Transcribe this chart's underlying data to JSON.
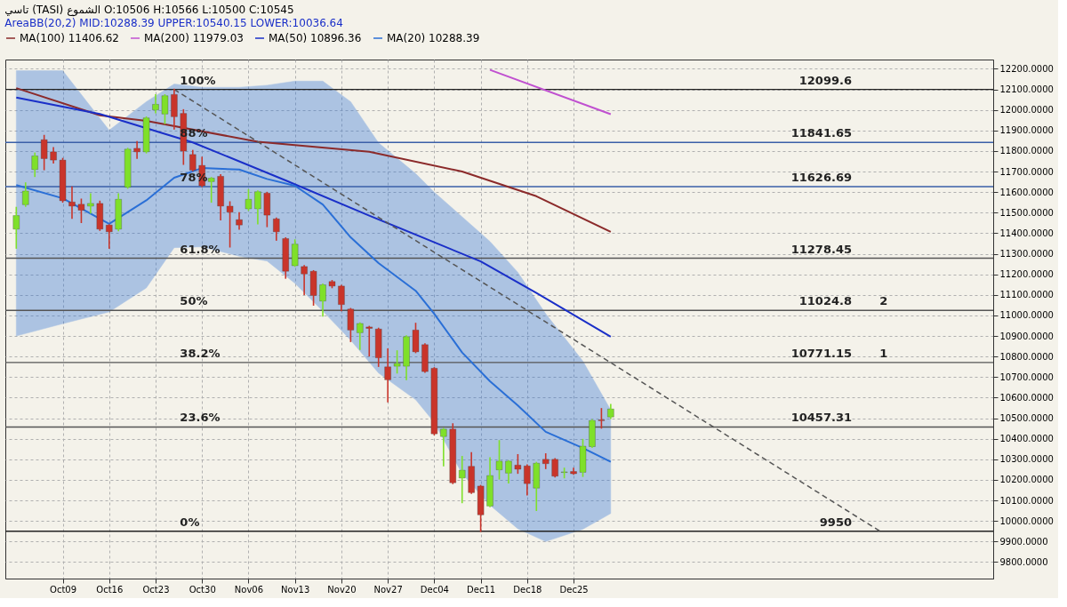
{
  "chart_data": {
    "type": "candlestick",
    "title": "تاسي (TASI) الشموع O:10506 H:10566 L:10500 C:10545",
    "subtitle": "AreaBB(20,2) MID:10288.39 UPPER:10540.15 LOWER:10036.64",
    "categories": [
      null,
      null,
      null,
      null,
      null,
      "Oct09",
      null,
      null,
      null,
      null,
      "Oct16",
      null,
      null,
      null,
      null,
      "Oct23",
      null,
      null,
      null,
      null,
      "Oct30",
      null,
      null,
      null,
      null,
      "Nov06",
      null,
      null,
      null,
      null,
      "Nov13",
      null,
      null,
      null,
      null,
      "Nov20",
      null,
      null,
      null,
      null,
      "Nov27",
      null,
      null,
      null,
      null,
      "Dec04",
      null,
      null,
      null,
      null,
      "Dec11",
      null,
      null,
      null,
      null,
      "Dec18",
      null,
      null,
      null,
      null,
      "Dec25",
      null,
      null,
      null,
      null,
      null,
      null,
      null,
      null,
      null,
      null,
      null,
      null,
      null,
      null,
      null,
      null,
      null,
      null,
      null,
      null,
      null,
      null,
      null,
      null,
      null,
      null,
      null,
      null,
      null,
      null,
      null,
      null,
      null,
      null,
      null,
      null,
      null,
      null,
      null,
      null,
      null,
      null,
      null,
      null
    ],
    "ohlc": [
      [
        11420,
        11525,
        11328,
        11486
      ],
      [
        11539,
        11644,
        11532,
        11605
      ],
      [
        11710,
        11789,
        11677,
        11776
      ],
      [
        11855,
        11875,
        11710,
        11763
      ],
      [
        11796,
        11816,
        11743,
        11756
      ],
      [
        11756,
        11763,
        11552,
        11558
      ],
      [
        11552,
        11624,
        11473,
        11532
      ],
      [
        11541,
        11565,
        11453,
        11512
      ],
      [
        11532,
        11591,
        11499,
        11545
      ],
      [
        11545,
        11555,
        11415,
        11420
      ],
      [
        11440,
        11440,
        11328,
        11407
      ],
      [
        11420,
        11591,
        11413,
        11565
      ],
      [
        11624,
        11812,
        11620,
        11809
      ],
      [
        11813,
        11845,
        11765,
        11796
      ],
      [
        11796,
        11965,
        11792,
        11961
      ],
      [
        12000,
        12073,
        11987,
        12027
      ],
      [
        11980,
        12073,
        11934,
        12069
      ],
      [
        12075,
        12099.6,
        11908,
        11967
      ],
      [
        11983,
        12000,
        11736,
        11800
      ],
      [
        11783,
        11802,
        11705,
        11707
      ],
      [
        11730,
        11769,
        11628,
        11631
      ],
      [
        11651,
        11670,
        11552,
        11668
      ],
      [
        11677,
        11684,
        11466,
        11532
      ],
      [
        11532,
        11552,
        11334,
        11502
      ],
      [
        11466,
        11499,
        11420,
        11440
      ],
      [
        11519,
        11611,
        11512,
        11565
      ],
      [
        11519,
        11605,
        11446,
        11602
      ],
      [
        11595,
        11598,
        11433,
        11488
      ],
      [
        11470,
        11473,
        11367,
        11407
      ],
      [
        11374,
        11377,
        11182,
        11215
      ],
      [
        11242,
        11367,
        11240,
        11347
      ],
      [
        11238,
        11242,
        11103,
        11202
      ],
      [
        11215,
        11217,
        11051,
        11097
      ],
      [
        11070,
        11152,
        10998,
        11149
      ],
      [
        11165,
        11169,
        11136,
        11143
      ],
      [
        11143,
        11146,
        11024,
        11053
      ],
      [
        11031,
        11033,
        10874,
        10929
      ],
      [
        10916,
        10963,
        10836,
        10961
      ],
      [
        10944,
        10946,
        10804,
        10937
      ],
      [
        10934,
        10937,
        10753,
        10794
      ],
      [
        10750,
        10836,
        10581,
        10687
      ],
      [
        10753,
        10827,
        10721,
        10766
      ],
      [
        10753,
        10900,
        10689,
        10897
      ],
      [
        10929,
        10961,
        10820,
        10823
      ],
      [
        10858,
        10861,
        10724,
        10727
      ],
      [
        10743,
        10745,
        10420,
        10424
      ],
      [
        10411,
        10449,
        10269,
        10447
      ],
      [
        10447,
        10472,
        10183,
        10186
      ],
      [
        10209,
        10313,
        10090,
        10247
      ],
      [
        10266,
        10332,
        10135,
        10138
      ],
      [
        10170,
        10172,
        9950,
        10030
      ],
      [
        10073,
        10307,
        10070,
        10221
      ],
      [
        10249,
        10390,
        10205,
        10291
      ],
      [
        10233,
        10293,
        10186,
        10291
      ],
      [
        10272,
        10322,
        10233,
        10252
      ],
      [
        10268,
        10272,
        10128,
        10182
      ],
      [
        10160,
        10284,
        10052,
        10281
      ],
      [
        10300,
        10326,
        10256,
        10279
      ],
      [
        10300,
        10302,
        10215,
        10218
      ],
      [
        10236,
        10256,
        10211,
        10239
      ],
      [
        10241,
        10256,
        10228,
        10230
      ],
      [
        10237,
        10396,
        10218,
        10364
      ],
      [
        10362,
        10492,
        10359,
        10489
      ],
      [
        10492,
        10546,
        10453,
        10488
      ],
      [
        10506,
        10566,
        10500,
        10545
      ],
      null,
      null,
      null,
      null,
      null,
      null,
      null,
      null,
      null,
      null,
      null,
      null,
      null,
      null,
      null,
      null,
      null,
      null,
      null,
      null,
      null,
      null,
      null,
      null,
      null,
      null,
      null,
      null,
      null,
      null,
      null,
      null,
      null,
      null,
      null,
      null,
      null,
      null,
      null,
      null
    ],
    "colors": [
      "#7fe02a",
      "#7fe02a",
      "#7fe02a",
      "#c9352b",
      "#c9352b",
      "#c9352b",
      "#c9352b",
      "#c9352b",
      "#7fe02a",
      "#c9352b",
      "#c9352b",
      "#7fe02a",
      "#7fe02a",
      "#c9352b",
      "#7fe02a",
      "#7fe02a",
      "#7fe02a",
      "#c9352b",
      "#c9352b",
      "#c9352b",
      "#c9352b",
      "#7fe02a",
      "#c9352b",
      "#c9352b",
      "#c9352b",
      "#7fe02a",
      "#7fe02a",
      "#c9352b",
      "#c9352b",
      "#c9352b",
      "#7fe02a",
      "#c9352b",
      "#c9352b",
      "#7fe02a",
      "#c9352b",
      "#c9352b",
      "#c9352b",
      "#7fe02a",
      "#c9352b",
      "#c9352b",
      "#c9352b",
      "#7fe02a",
      "#7fe02a",
      "#c9352b",
      "#c9352b",
      "#c9352b",
      "#7fe02a",
      "#c9352b",
      "#7fe02a",
      "#c9352b",
      "#c9352b",
      "#7fe02a",
      "#7fe02a",
      "#7fe02a",
      "#c9352b",
      "#c9352b",
      "#7fe02a",
      "#c9352b",
      "#c9352b",
      "#7fe02a",
      "#c9352b",
      "#7fe02a",
      "#7fe02a",
      "#c9352b",
      "#7fe02a",
      null,
      null,
      null,
      null,
      null,
      null,
      null,
      null,
      null,
      null,
      null,
      null,
      null,
      null,
      null,
      null,
      null,
      null,
      null,
      null,
      null,
      null,
      null,
      null,
      null,
      null,
      null,
      null,
      null,
      null,
      null,
      null,
      null,
      null,
      null,
      null,
      null,
      null,
      null,
      null
    ],
    "series": [
      {
        "type": "line",
        "name": "MA(100) 11406.62",
        "color": "#8b2a2a",
        "values": [
          12106,
          null,
          null,
          null,
          null,
          null,
          null,
          null,
          null,
          11974,
          null,
          null,
          null,
          null,
          11947,
          null,
          null,
          null,
          null,
          null,
          null,
          null,
          null,
          null,
          null,
          null,
          11845,
          null,
          null,
          null,
          null,
          null,
          null,
          null,
          null,
          null,
          null,
          null,
          11796,
          null,
          null,
          null,
          null,
          null,
          null,
          null,
          null,
          null,
          11700,
          null,
          null,
          null,
          null,
          null,
          null,
          null,
          11580,
          null,
          null,
          null,
          null,
          null,
          null,
          null,
          11406.62,
          null,
          null,
          null,
          null,
          null,
          null,
          null,
          null,
          null,
          null,
          null,
          null,
          null,
          null,
          null,
          null,
          null,
          null,
          null,
          null,
          null,
          null,
          null,
          null,
          null,
          null,
          null,
          null,
          null,
          null,
          null,
          null,
          null,
          null,
          null,
          null,
          null,
          null,
          null,
          null
        ]
      },
      {
        "type": "line",
        "name": "MA(200) 11979.03",
        "color": "#c050d0",
        "values": [
          null,
          null,
          null,
          null,
          null,
          null,
          null,
          null,
          null,
          null,
          null,
          null,
          null,
          null,
          null,
          null,
          null,
          null,
          null,
          null,
          null,
          null,
          null,
          null,
          null,
          null,
          null,
          null,
          null,
          null,
          null,
          null,
          null,
          null,
          null,
          null,
          null,
          null,
          null,
          null,
          null,
          null,
          null,
          null,
          null,
          null,
          null,
          null,
          null,
          null,
          null,
          12195,
          null,
          null,
          null,
          null,
          null,
          null,
          null,
          null,
          null,
          null,
          null,
          null,
          11979.03,
          null,
          null,
          null,
          null,
          null,
          null,
          null,
          null,
          null,
          null,
          null,
          null,
          null,
          null,
          null,
          null,
          null,
          null,
          null,
          null,
          null,
          null,
          null,
          null,
          null,
          null,
          null,
          null,
          null,
          null,
          null,
          null,
          null,
          null,
          null,
          null,
          null,
          null,
          null,
          null
        ]
      },
      {
        "type": "line",
        "name": "MA(50) 10896.36",
        "color": "#1a2fc8",
        "values": [
          12060,
          null,
          null,
          null,
          null,
          null,
          null,
          null,
          null,
          11980,
          null,
          null,
          null,
          null,
          null,
          null,
          null,
          null,
          null,
          11842,
          null,
          null,
          null,
          null,
          null,
          null,
          null,
          null,
          null,
          11657,
          null,
          null,
          null,
          null,
          null,
          null,
          null,
          null,
          11486,
          null,
          null,
          null,
          null,
          null,
          null,
          null,
          null,
          null,
          null,
          null,
          11263,
          null,
          null,
          null,
          null,
          null,
          11110,
          null,
          null,
          null,
          null,
          null,
          null,
          null,
          10896.36,
          null,
          null,
          null,
          null,
          null,
          null,
          null,
          null,
          null,
          null,
          null,
          null,
          null,
          null,
          null,
          null,
          null,
          null,
          null,
          null,
          null,
          null,
          null,
          null,
          null,
          null,
          null,
          null,
          null,
          null,
          null,
          null,
          null,
          null,
          null,
          null,
          null,
          null,
          null,
          null
        ]
      },
      {
        "type": "line",
        "name": "MA(20) 10288.39",
        "color": "#2a6fd6",
        "values": [
          11634,
          null,
          null,
          null,
          null,
          11570,
          null,
          null,
          null,
          null,
          11446,
          null,
          null,
          null,
          11560,
          null,
          null,
          11670,
          null,
          null,
          11717,
          null,
          null,
          null,
          11710,
          null,
          null,
          11664,
          null,
          null,
          11631,
          null,
          null,
          11540,
          null,
          null,
          11380,
          null,
          null,
          11255,
          null,
          null,
          null,
          11120,
          null,
          11008,
          null,
          null,
          10820,
          null,
          null,
          10680,
          null,
          null,
          10562,
          null,
          null,
          10434,
          null,
          null,
          null,
          10355,
          null,
          null,
          10288.39,
          null,
          null,
          null,
          null,
          null,
          null,
          null,
          null,
          null,
          null,
          null,
          null,
          null,
          null,
          null,
          null,
          null,
          null,
          null,
          null,
          null,
          null,
          null,
          null,
          null,
          null,
          null,
          null,
          null,
          null,
          null,
          null,
          null,
          null,
          null,
          null,
          null,
          null,
          null,
          null
        ],
        "upper": [
          12191,
          null,
          null,
          null,
          null,
          12191,
          null,
          null,
          null,
          null,
          11901,
          null,
          null,
          null,
          12040,
          null,
          null,
          12126,
          null,
          null,
          12110,
          null,
          null,
          null,
          12110,
          null,
          null,
          12120,
          null,
          null,
          12140,
          null,
          null,
          12140,
          null,
          null,
          12040,
          null,
          null,
          11840,
          null,
          null,
          null,
          11690,
          null,
          11600,
          null,
          null,
          11480,
          null,
          null,
          11360,
          null,
          null,
          11210,
          null,
          null,
          11008,
          null,
          null,
          null,
          10778,
          null,
          null,
          10540.15,
          null,
          null,
          null,
          null,
          null,
          null,
          null,
          null,
          null,
          null,
          null,
          null,
          null,
          null,
          null,
          null,
          null,
          null,
          null,
          null,
          null,
          null,
          null,
          null,
          null,
          null,
          null,
          null,
          null,
          null,
          null,
          null,
          null,
          null,
          null,
          null,
          null,
          null,
          null,
          null
        ],
        "lower": [
          10900,
          null,
          null,
          null,
          null,
          10960,
          null,
          null,
          null,
          null,
          11017,
          null,
          null,
          null,
          11134,
          null,
          null,
          11330,
          null,
          null,
          11334,
          null,
          null,
          null,
          11288,
          null,
          null,
          11265,
          null,
          null,
          11156,
          null,
          null,
          11021,
          null,
          null,
          10880,
          null,
          null,
          10720,
          null,
          null,
          null,
          10590,
          null,
          10480,
          null,
          null,
          10230,
          null,
          null,
          10077,
          null,
          null,
          9962,
          null,
          null,
          9900,
          null,
          null,
          null,
          9960,
          null,
          null,
          10036.64,
          null,
          null,
          null,
          null,
          null,
          null,
          null,
          null,
          null,
          null,
          null,
          null,
          null,
          null,
          null,
          null,
          null,
          null,
          null,
          null,
          null,
          null,
          null,
          null,
          null,
          null,
          null,
          null,
          null,
          null,
          null,
          null,
          null,
          null,
          null,
          null,
          null,
          null,
          null,
          null
        ]
      },
      {
        "type": "line",
        "color": "#555555",
        "line_style": "dashed",
        "values": [
          null,
          null,
          null,
          null,
          null,
          null,
          null,
          null,
          null,
          null,
          null,
          null,
          null,
          null,
          null,
          null,
          null,
          12099.6,
          null,
          null,
          null,
          null,
          null,
          null,
          null,
          null,
          null,
          null,
          null,
          null,
          null,
          null,
          null,
          null,
          null,
          null,
          null,
          null,
          null,
          null,
          null,
          null,
          null,
          null,
          null,
          null,
          null,
          null,
          null,
          null,
          null,
          null,
          null,
          null,
          null,
          null,
          null,
          null,
          null,
          null,
          null,
          null,
          null,
          null,
          null,
          null,
          null,
          null,
          null,
          null,
          null,
          null,
          null,
          null,
          null,
          null,
          null,
          null,
          null,
          null,
          null,
          null,
          null,
          null,
          null,
          null,
          null,
          null,
          null,
          null,
          null,
          null,
          null,
          9950,
          null,
          null,
          null,
          null,
          null,
          null,
          null,
          null,
          null,
          null,
          null
        ]
      }
    ],
    "ylim": [
      9720,
      12245
    ],
    "yticks": [
      {
        "value": 9800,
        "label": "9800.0000"
      },
      {
        "value": 9900,
        "label": "9900.0000"
      },
      {
        "value": 10000,
        "label": "10000.0000"
      },
      {
        "value": 10100,
        "label": "10100.0000"
      },
      {
        "value": 10200,
        "label": "10200.0000"
      },
      {
        "value": 10300,
        "label": "10300.0000"
      },
      {
        "value": 10400,
        "label": "10400.0000"
      },
      {
        "value": 10500,
        "label": "10500.0000"
      },
      {
        "value": 10600,
        "label": "10600.0000"
      },
      {
        "value": 10700,
        "label": "10700.0000"
      },
      {
        "value": 10800,
        "label": "10800.0000"
      },
      {
        "value": 10900,
        "label": "10900.0000"
      },
      {
        "value": 11000,
        "label": "11000.0000"
      },
      {
        "value": 11100,
        "label": "11100.0000"
      },
      {
        "value": 11200,
        "label": "11200.0000"
      },
      {
        "value": 11300,
        "label": "11300.0000"
      },
      {
        "value": 11400,
        "label": "11400.0000"
      },
      {
        "value": 11500,
        "label": "11500.0000"
      },
      {
        "value": 11600,
        "label": "11600.0000"
      },
      {
        "value": 11700,
        "label": "11700.0000"
      },
      {
        "value": 11800,
        "label": "11800.0000"
      },
      {
        "value": 11900,
        "label": "11900.0000"
      },
      {
        "value": 12000,
        "label": "12000.0000"
      },
      {
        "value": 12100,
        "label": "12100.0000"
      },
      {
        "value": 12200,
        "label": "12200.0000"
      }
    ],
    "grid": true,
    "legend": "top",
    "ref_lines": [
      {
        "axis": "y",
        "value": 12099.6,
        "color": "#222222",
        "label": "12099.6"
      },
      {
        "axis": "y",
        "value": 11841.65,
        "color": "#3a5fa8",
        "label": "11841.65"
      },
      {
        "axis": "y",
        "value": 11626.69,
        "color": "#3a5fa8",
        "label": "11626.69"
      },
      {
        "axis": "y",
        "value": 11278.45,
        "color": "#555555",
        "label": "11278.45"
      },
      {
        "axis": "y",
        "value": 11024.8,
        "color": "#555555",
        "label": "11024.8"
      },
      {
        "axis": "y",
        "value": 10771.15,
        "color": "#555555",
        "label": "10771.15"
      },
      {
        "axis": "y",
        "value": 10457.31,
        "color": "#555555",
        "label": "10457.31"
      },
      {
        "axis": "y",
        "value": 9950,
        "color": "#222222",
        "label": "9950"
      }
    ],
    "annotations": [
      {
        "text": "100%",
        "y": 12099.6
      },
      {
        "text": "88%",
        "y": 11841.65
      },
      {
        "text": "78%",
        "y": 11626.69
      },
      {
        "text": "61.8%",
        "y": 11278.45
      },
      {
        "text": "50%",
        "y": 11024.8
      },
      {
        "text": "38.2%",
        "y": 10771.15
      },
      {
        "text": "23.6%",
        "y": 10457.31
      },
      {
        "text": "0%",
        "y": 9950
      },
      {
        "text": "2",
        "y": 11024.8
      },
      {
        "text": "1",
        "y": 10771.15
      }
    ]
  }
}
